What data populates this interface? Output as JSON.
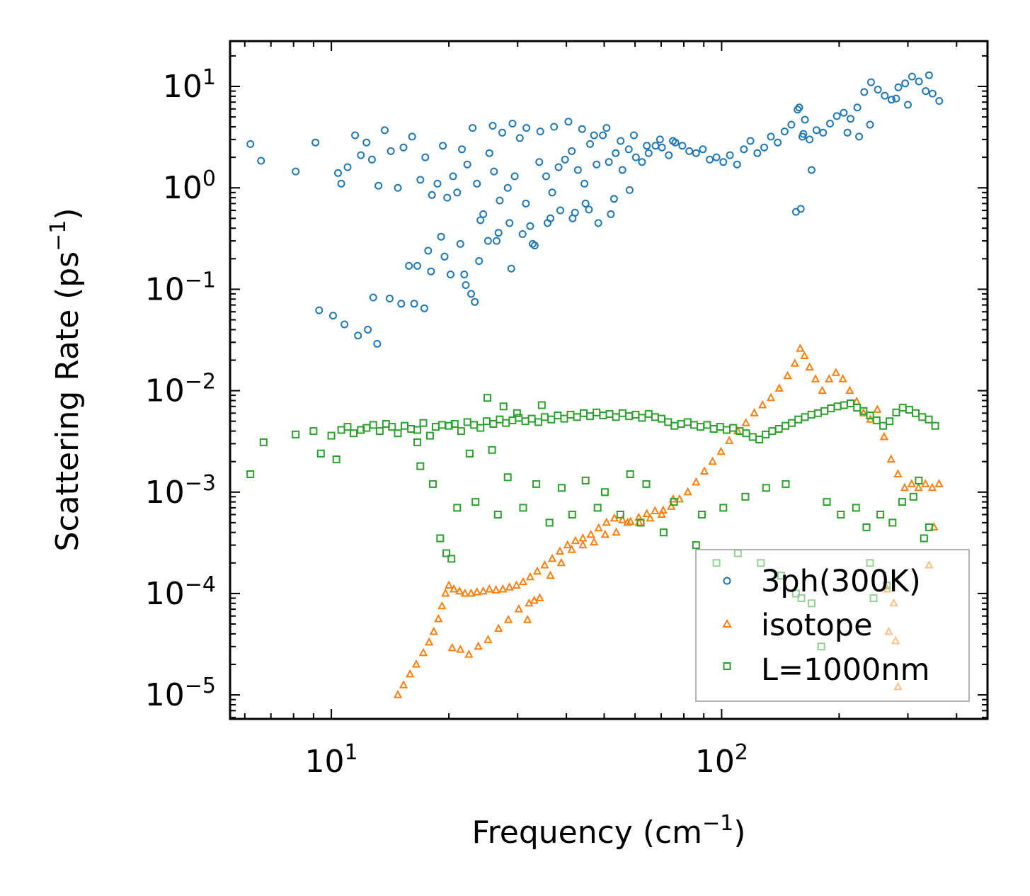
{
  "chart_data": {
    "type": "scatter",
    "title": "",
    "xlabel": {
      "text": "Frequency (cm",
      "sup": "−1",
      "close": ")"
    },
    "ylabel": {
      "text": "Scattering Rate (ps",
      "sup": "−1",
      "close": ")"
    },
    "xscale": "log",
    "yscale": "log",
    "xlim": [
      5.5,
      480
    ],
    "ylim": [
      5.8e-06,
      28
    ],
    "x_ticks": [
      {
        "value": 10,
        "base": "10",
        "exp": "1"
      },
      {
        "value": 100,
        "base": "10",
        "exp": "2"
      }
    ],
    "y_ticks": [
      {
        "value": 10,
        "base": "10",
        "exp": "1"
      },
      {
        "value": 1,
        "base": "10",
        "exp": "0"
      },
      {
        "value": 0.1,
        "base": "10",
        "exp": "−1"
      },
      {
        "value": 0.01,
        "base": "10",
        "exp": "−2"
      },
      {
        "value": 0.001,
        "base": "10",
        "exp": "−3"
      },
      {
        "value": 0.0001,
        "base": "10",
        "exp": "−4"
      },
      {
        "value": 1e-05,
        "base": "10",
        "exp": "−5"
      }
    ],
    "legend_position": "lower right",
    "series": [
      {
        "name": "3ph(300K)",
        "color": "#1f77b4",
        "marker": "circle",
        "x": [
          6.2,
          6.6,
          8.1,
          9.1,
          9.3,
          10.1,
          10.4,
          10.6,
          10.8,
          11.0,
          11.5,
          11.9,
          12.3,
          12.7,
          13.2,
          13.7,
          14.2,
          14.8,
          15.3,
          15.8,
          16.1,
          16.9,
          17.4,
          18.1,
          18.7,
          19.3,
          19.8,
          20.5,
          21.0,
          21.6,
          22.3,
          23.0,
          23.6,
          24.5,
          25.4,
          26.1,
          27.0,
          28.3,
          29.5,
          30.4,
          31.5,
          32.8,
          34.1,
          35.5,
          36.8,
          38.2,
          39.7,
          41.3,
          42.8,
          44.5,
          46.0,
          47.8,
          49.6,
          51.4,
          53.5,
          55.7,
          57.8,
          60.3,
          62.5,
          65.0,
          67.7,
          70.3,
          73.2,
          76.1,
          79.3,
          82.6,
          86.0,
          89.5,
          93.2,
          97.0,
          101.0,
          105.0,
          109.5,
          114.0,
          118.5,
          123.4,
          128.5,
          133.7,
          139.2,
          145.0,
          150.9,
          155.0,
          158.0,
          162.0,
          168.0,
          175.0,
          182.0,
          189.5,
          197.3,
          205.5,
          213.9,
          222.7,
          231.9,
          241.4,
          251.3,
          261.7,
          272.4,
          283.6,
          295.3,
          307.5,
          320.2,
          333.4,
          347.1,
          361.0,
          20.2,
          21.4,
          22.8,
          23.9,
          25.2,
          19.1,
          18.0,
          16.6,
          17.3,
          24.1,
          26.5,
          28.6,
          30.9,
          33.2,
          35.8,
          38.6,
          41.5,
          44.8,
          48.3,
          52.0,
          40.5,
          37.2,
          34.3,
          31.6,
          29.1,
          27.4,
          25.9,
          43.9,
          47.1,
          50.7,
          55.1,
          59.6,
          64.3,
          69.5,
          75.0,
          156.5,
          159.5,
          161.0,
          163.5,
          170.0,
          210.0,
          225.0,
          240.0,
          280.0,
          300.0,
          340.0,
          12.4,
          12.8,
          11.7,
          13.1,
          15.1,
          17.7,
          22.1,
          23.3,
          28.9,
          19.5,
          21.9,
          26.8,
          32.3,
          36.4,
          42.1,
          45.7,
          53.0,
          58.1,
          14.1,
          16.3
        ],
        "y": [
          2.7,
          1.85,
          1.45,
          2.8,
          0.062,
          0.055,
          1.4,
          1.1,
          0.045,
          1.6,
          3.3,
          2.1,
          2.8,
          1.9,
          1.05,
          3.7,
          2.3,
          1.0,
          2.5,
          0.17,
          3.2,
          1.2,
          2.0,
          0.85,
          1.1,
          2.6,
          0.8,
          1.3,
          0.9,
          2.4,
          1.7,
          3.9,
          1.1,
          0.55,
          2.2,
          1.45,
          0.75,
          1.0,
          1.3,
          3.1,
          0.7,
          0.28,
          1.8,
          1.3,
          0.9,
          1.6,
          1.9,
          2.3,
          1.5,
          1.1,
          2.7,
          1.7,
          3.3,
          1.8,
          2.2,
          1.5,
          2.4,
          2.0,
          1.8,
          2.2,
          2.6,
          2.5,
          2.1,
          2.8,
          2.6,
          2.3,
          2.2,
          2.4,
          1.9,
          2.0,
          1.8,
          2.1,
          1.7,
          2.4,
          2.9,
          2.2,
          2.5,
          3.2,
          2.8,
          3.6,
          4.2,
          0.58,
          6.2,
          3.4,
          3.0,
          3.7,
          3.5,
          4.3,
          5.1,
          5.5,
          4.8,
          6.2,
          8.8,
          11.0,
          9.3,
          8.1,
          7.4,
          9.8,
          10.7,
          12.5,
          11.2,
          9.0,
          8.5,
          7.2,
          0.14,
          0.28,
          0.09,
          0.19,
          0.3,
          0.33,
          0.15,
          0.17,
          0.065,
          0.48,
          0.3,
          0.45,
          0.35,
          0.27,
          0.45,
          0.6,
          0.5,
          0.7,
          0.45,
          0.55,
          4.5,
          4.0,
          3.6,
          3.9,
          4.3,
          3.5,
          4.1,
          3.8,
          3.3,
          3.9,
          2.9,
          3.3,
          2.6,
          3.0,
          2.9,
          5.9,
          0.62,
          3.2,
          4.7,
          1.5,
          3.5,
          3.2,
          4.2,
          7.6,
          6.6,
          12.9,
          0.04,
          0.083,
          0.035,
          0.029,
          0.072,
          0.24,
          0.11,
          0.075,
          0.16,
          0.21,
          0.14,
          0.36,
          0.42,
          0.5,
          0.57,
          0.61,
          0.78,
          0.95,
          0.081,
          0.072
        ]
      },
      {
        "name": "isotope",
        "color": "#ff7f0e",
        "marker": "triangle",
        "x": [
          14.8,
          15.3,
          15.9,
          16.5,
          17.2,
          17.8,
          18.3,
          18.8,
          19.2,
          19.6,
          20.0,
          20.6,
          21.3,
          22.0,
          22.8,
          23.6,
          24.5,
          25.4,
          26.4,
          27.5,
          28.6,
          29.8,
          31.0,
          32.3,
          33.7,
          35.2,
          36.8,
          38.5,
          40.3,
          42.2,
          44.1,
          46.2,
          48.4,
          50.7,
          53.1,
          55.7,
          58.4,
          61.3,
          64.3,
          67.5,
          70.8,
          74.3,
          78.0,
          81.9,
          86.0,
          90.3,
          94.8,
          99.6,
          104.6,
          109.9,
          115.4,
          121.2,
          127.3,
          133.7,
          140.4,
          147.5,
          154.0,
          159.0,
          163.0,
          168.0,
          174.0,
          181.0,
          188.5,
          196.3,
          204.4,
          212.9,
          221.7,
          230.9,
          240.5,
          250.5,
          260.8,
          271.6,
          282.9,
          294.5,
          306.7,
          319.4,
          332.6,
          346.4,
          360.7,
          21.4,
          22.5,
          23.8,
          25.2,
          26.8,
          28.4,
          30.2,
          32.1,
          34.2,
          36.4,
          38.8,
          41.3,
          44.1,
          47.1,
          50.3,
          53.7,
          57.4,
          61.4,
          65.6,
          70.2,
          75.1,
          276.0,
          279.0,
          283.0,
          266.0,
          268.0,
          340.0,
          350.0,
          20.4,
          31.8,
          33.1
        ],
        "y": [
          1e-05,
          1.25e-05,
          1.6e-05,
          2e-05,
          2.6e-05,
          3.3e-05,
          4.2e-05,
          5.6e-05,
          7.5e-05,
          0.0001,
          0.00012,
          0.00011,
          0.000105,
          0.0001,
          0.0001,
          0.000103,
          0.000105,
          0.00011,
          0.000108,
          0.00011,
          0.000115,
          0.00012,
          0.00013,
          0.000145,
          0.000165,
          0.00019,
          0.00022,
          0.00026,
          0.0003,
          0.00033,
          0.00035,
          0.00038,
          0.00044,
          0.0005,
          0.00055,
          0.00053,
          0.00051,
          0.00056,
          0.00061,
          0.00065,
          0.00066,
          0.00072,
          0.00085,
          0.001,
          0.00125,
          0.0016,
          0.002,
          0.0025,
          0.0032,
          0.004,
          0.0048,
          0.006,
          0.0072,
          0.0085,
          0.0105,
          0.014,
          0.0185,
          0.026,
          0.022,
          0.017,
          0.013,
          0.01,
          0.013,
          0.015,
          0.013,
          0.01,
          0.0078,
          0.006,
          0.0052,
          0.0065,
          0.0035,
          0.0021,
          0.0015,
          0.0011,
          0.0012,
          0.0011,
          0.0012,
          0.0011,
          0.0012,
          2.8e-05,
          2.5e-05,
          3e-05,
          3.5e-05,
          4.5e-05,
          5.5e-05,
          7e-05,
          8e-05,
          9e-05,
          0.00015,
          0.0002,
          0.00027,
          0.0003,
          0.00032,
          0.00038,
          0.0004,
          0.0005,
          0.0005,
          0.00055,
          0.0006,
          0.00085,
          8e-05,
          3.4e-05,
          1.2e-05,
          0.00011,
          4.2e-05,
          0.00019,
          0.00045,
          2.9e-05,
          5.5e-05,
          8.5e-05
        ]
      },
      {
        "name": "L=1000nm",
        "color": "#2ca02c",
        "marker": "square",
        "x": [
          6.2,
          6.7,
          8.1,
          9.0,
          9.4,
          10.0,
          10.3,
          10.6,
          11.0,
          11.4,
          11.9,
          12.3,
          12.8,
          13.3,
          13.8,
          14.3,
          14.8,
          15.4,
          16.0,
          16.6,
          17.2,
          17.9,
          18.5,
          19.2,
          20.0,
          20.7,
          21.5,
          22.3,
          23.2,
          24.1,
          25.0,
          26.0,
          27.0,
          28.0,
          29.1,
          30.2,
          31.4,
          32.6,
          33.9,
          35.2,
          36.6,
          38.0,
          39.5,
          41.0,
          42.6,
          44.3,
          46.0,
          47.8,
          49.7,
          51.6,
          53.6,
          55.7,
          57.9,
          60.2,
          62.5,
          65.0,
          67.5,
          70.1,
          72.9,
          75.7,
          78.7,
          81.8,
          85.0,
          88.3,
          91.8,
          95.4,
          99.1,
          103.0,
          107.0,
          111.2,
          115.6,
          120.1,
          124.8,
          129.7,
          134.8,
          140.1,
          145.6,
          151.3,
          157.2,
          163.4,
          169.8,
          176.5,
          183.4,
          190.6,
          198.1,
          205.8,
          213.9,
          222.3,
          231.0,
          240.1,
          249.5,
          259.3,
          269.4,
          280.0,
          291.0,
          302.4,
          314.2,
          326.6,
          339.4,
          352.6,
          19.0,
          19.7,
          20.3,
          21.0,
          23.4,
          26.7,
          31.0,
          36.2,
          41.4,
          48.1,
          55.0,
          62.0,
          71.0,
          86.0,
          97.0,
          110.0,
          126.0,
          142.0,
          155.0,
          160.0,
          170.0,
          180.0,
          235.0,
          240.0,
          245.0,
          255.0,
          265.0,
          330.0,
          340.0,
          16.6,
          22.6,
          25.8,
          28.3,
          33.5,
          38.9,
          44.8,
          50.2,
          58.3,
          64.1,
          75.5,
          89.0,
          101.0,
          115.0,
          130.0,
          146.0,
          186.0,
          202.0,
          221.0,
          274.0,
          290.0,
          310.0,
          320.0,
          25.1,
          27.6,
          29.9,
          34.6,
          16.9,
          18.2
        ],
        "y": [
          0.0015,
          0.0031,
          0.0037,
          0.004,
          0.0024,
          0.0036,
          0.0021,
          0.0041,
          0.0044,
          0.0038,
          0.0041,
          0.0043,
          0.0046,
          0.004,
          0.0047,
          0.0044,
          0.0038,
          0.0045,
          0.0042,
          0.0041,
          0.0048,
          0.0036,
          0.0044,
          0.0046,
          0.0045,
          0.0047,
          0.004,
          0.0049,
          0.0046,
          0.0043,
          0.005,
          0.0047,
          0.0052,
          0.0048,
          0.0051,
          0.0054,
          0.005,
          0.0053,
          0.0049,
          0.0055,
          0.0052,
          0.0057,
          0.0053,
          0.0058,
          0.0055,
          0.006,
          0.0056,
          0.0061,
          0.0057,
          0.0059,
          0.0055,
          0.006,
          0.0056,
          0.0058,
          0.0054,
          0.0059,
          0.0055,
          0.0053,
          0.0049,
          0.0045,
          0.0047,
          0.0049,
          0.0046,
          0.0044,
          0.0046,
          0.0042,
          0.0044,
          0.0041,
          0.0043,
          0.004,
          0.0038,
          0.0035,
          0.0033,
          0.0037,
          0.004,
          0.0042,
          0.0045,
          0.0048,
          0.0052,
          0.0055,
          0.0058,
          0.006,
          0.0063,
          0.0067,
          0.007,
          0.0072,
          0.0075,
          0.0068,
          0.0063,
          0.0057,
          0.0051,
          0.0045,
          0.005,
          0.0061,
          0.0068,
          0.0065,
          0.006,
          0.0055,
          0.0052,
          0.0045,
          0.00035,
          0.00025,
          0.00022,
          0.0007,
          0.0008,
          0.0006,
          0.0007,
          0.0005,
          0.0006,
          0.0007,
          0.0006,
          0.0005,
          0.0004,
          0.0003,
          0.0002,
          0.00025,
          0.0002,
          0.00015,
          0.0001,
          9e-05,
          8e-05,
          3e-05,
          0.00045,
          0.0002,
          9e-05,
          0.0006,
          0.00012,
          0.00035,
          0.00045,
          0.0031,
          0.0024,
          0.0026,
          0.0014,
          0.0012,
          0.0011,
          0.0013,
          0.001,
          0.0015,
          0.0012,
          0.0008,
          0.0006,
          0.0007,
          0.0009,
          0.0011,
          0.0012,
          0.0008,
          0.0006,
          0.0007,
          0.0005,
          0.0008,
          0.0009,
          0.0013,
          0.0085,
          0.007,
          0.006,
          0.0072,
          0.0018,
          0.0012
        ]
      }
    ]
  }
}
